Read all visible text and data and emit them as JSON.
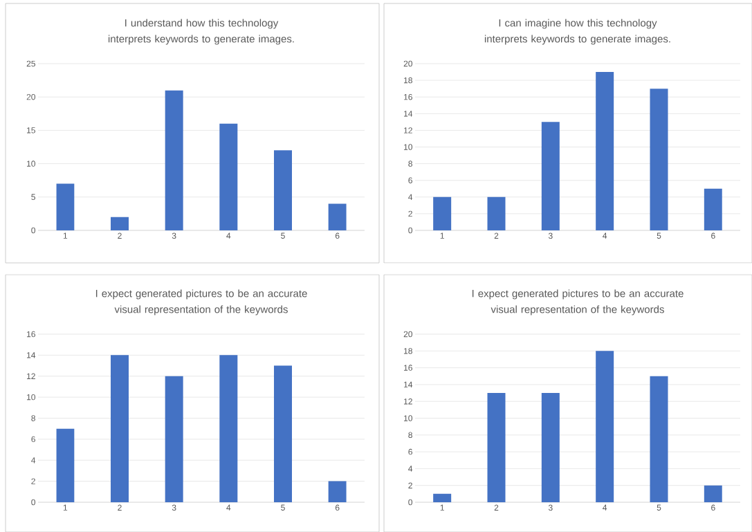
{
  "chart_data": [
    {
      "type": "bar",
      "title": "I understand how this technology interprets keywords to generate images.",
      "categories": [
        "1",
        "2",
        "3",
        "4",
        "5",
        "6"
      ],
      "values": [
        7,
        2,
        21,
        16,
        12,
        4
      ],
      "color": "#4472c4",
      "ylim": [
        0,
        25
      ],
      "yticks": [
        0,
        5,
        10,
        15,
        20,
        25
      ],
      "grid": "y"
    },
    {
      "type": "bar",
      "title": "I can imagine how this technology interprets keywords to generate images.",
      "categories": [
        "1",
        "2",
        "3",
        "4",
        "5",
        "6"
      ],
      "values": [
        4,
        4,
        13,
        19,
        17,
        5
      ],
      "color": "#4472c4",
      "ylim": [
        0,
        20
      ],
      "yticks": [
        0,
        2,
        4,
        6,
        8,
        10,
        12,
        14,
        16,
        18,
        20
      ],
      "grid": "y"
    },
    {
      "type": "bar",
      "title": "I expect generated pictures to be an accurate visual representation of the keywords",
      "categories": [
        "1",
        "2",
        "3",
        "4",
        "5",
        "6"
      ],
      "values": [
        7,
        14,
        12,
        14,
        13,
        2
      ],
      "color": "#4472c4",
      "ylim": [
        0,
        16
      ],
      "yticks": [
        0,
        2,
        4,
        6,
        8,
        10,
        12,
        14,
        16
      ],
      "grid": "y"
    },
    {
      "type": "bar",
      "title": "I expect generated pictures to be an accurate visual representation of the keywords",
      "categories": [
        "1",
        "2",
        "3",
        "4",
        "5",
        "6"
      ],
      "values": [
        1,
        13,
        13,
        18,
        15,
        2
      ],
      "color": "#4472c4",
      "ylim": [
        0,
        20
      ],
      "yticks": [
        0,
        2,
        4,
        6,
        8,
        10,
        12,
        14,
        16,
        18,
        20
      ],
      "grid": "y"
    }
  ]
}
